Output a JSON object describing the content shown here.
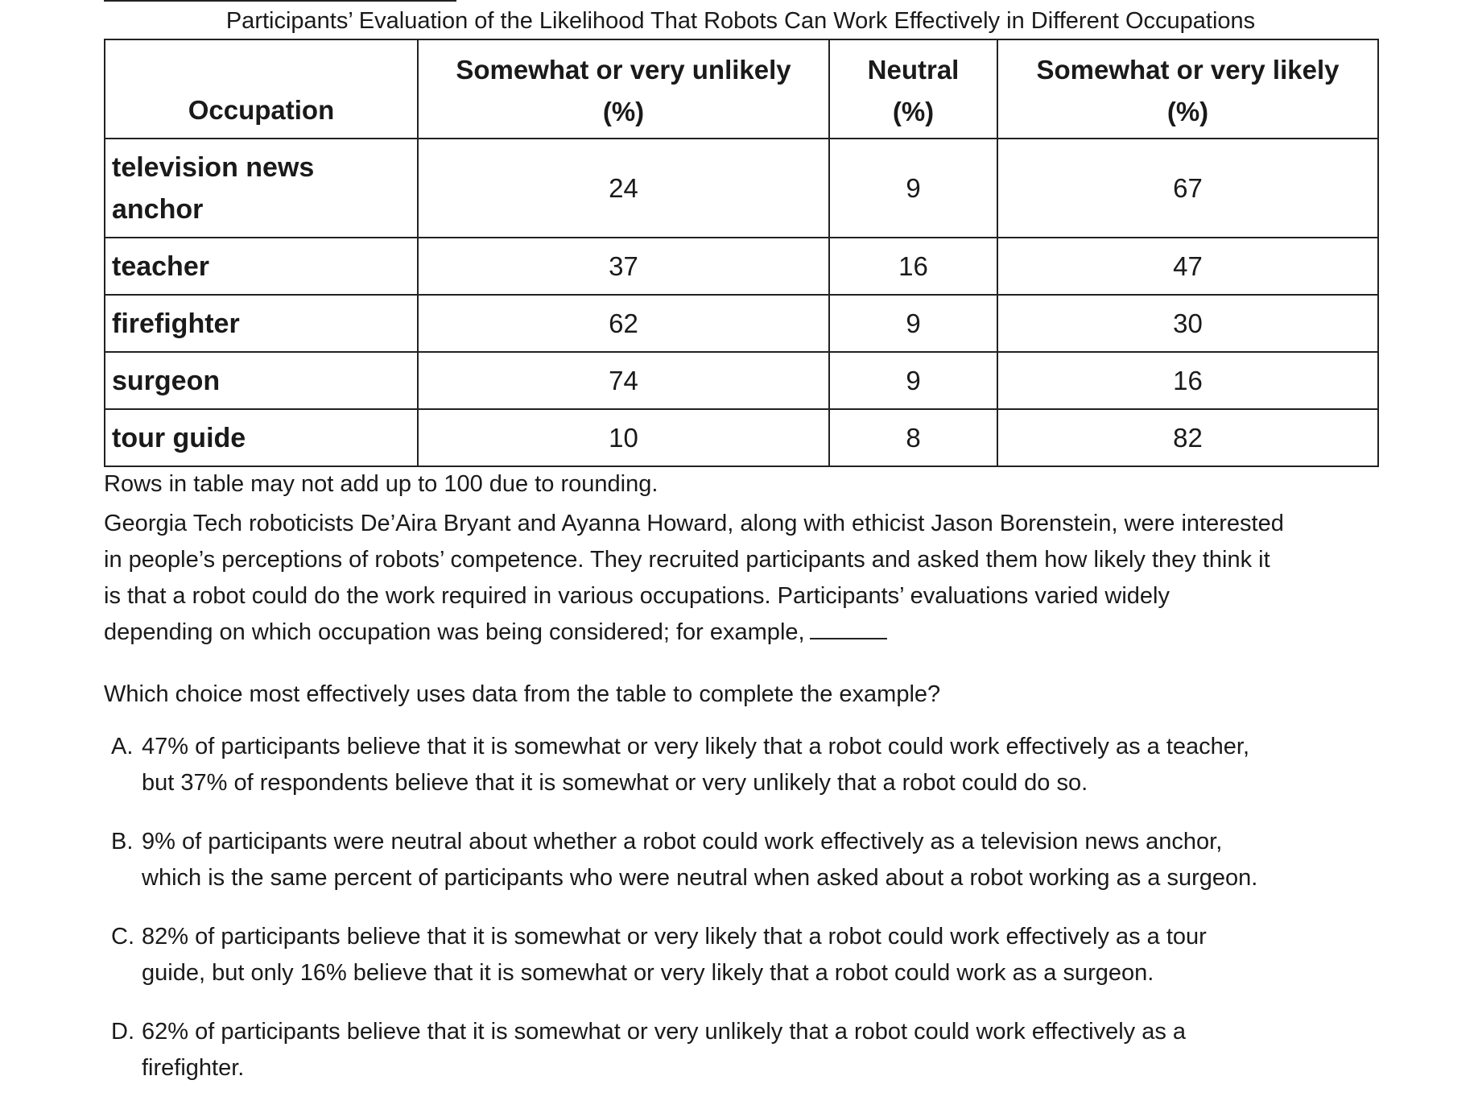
{
  "table": {
    "caption": "Participants’ Evaluation of the Likelihood That Robots Can Work Effectively in Different Occupations",
    "headers": [
      {
        "line1": "",
        "line2": "Occupation"
      },
      {
        "line1": "Somewhat or very unlikely",
        "line2": "(%)"
      },
      {
        "line1": "Neutral",
        "line2": "(%)"
      },
      {
        "line1": "Somewhat or very likely",
        "line2": "(%)"
      }
    ],
    "rows": [
      {
        "occupation_line1": "television news",
        "occupation_line2": "anchor",
        "unlikely": "24",
        "neutral": "9",
        "likely": "67"
      },
      {
        "occupation": "teacher",
        "unlikely": "37",
        "neutral": "16",
        "likely": "47"
      },
      {
        "occupation": "firefighter",
        "unlikely": "62",
        "neutral": "9",
        "likely": "30"
      },
      {
        "occupation": "surgeon",
        "unlikely": "74",
        "neutral": "9",
        "likely": "16"
      },
      {
        "occupation": "tour guide",
        "unlikely": "10",
        "neutral": "8",
        "likely": "82"
      }
    ],
    "note": "Rows in table may not add up to 100 due to rounding."
  },
  "passage": {
    "lines": [
      "Georgia Tech roboticists De’Aira Bryant and Ayanna Howard, along with ethicist Jason Borenstein, were interested",
      "in people’s perceptions of robots’ competence. They recruited participants and asked them how likely they think it",
      "is that a robot could do the work required in various occupations. Participants’ evaluations varied widely",
      "depending on which occupation was being considered; for example,"
    ]
  },
  "question": "Which choice most effectively uses data from the table to complete the example?",
  "choices": [
    {
      "letter": "A.",
      "line1": "47% of participants believe that it is somewhat or very likely that a robot could work effectively as a teacher,",
      "line2": "but 37% of respondents believe that it is somewhat or very unlikely that a robot could do so."
    },
    {
      "letter": "B.",
      "line1": "9% of participants were neutral about whether a robot could work effectively as a television news anchor,",
      "line2": "which is the same percent of participants who were neutral when asked about a robot working as a surgeon."
    },
    {
      "letter": "C.",
      "line1": "82% of participants believe that it is somewhat or very likely that a robot could work effectively as a tour",
      "line2": "guide, but only 16% believe that it is somewhat or very likely that a robot could work as a surgeon."
    },
    {
      "letter": "D.",
      "line1": "62% of participants believe that it is somewhat or very unlikely that a robot could work effectively as a",
      "line2": "firefighter."
    }
  ]
}
